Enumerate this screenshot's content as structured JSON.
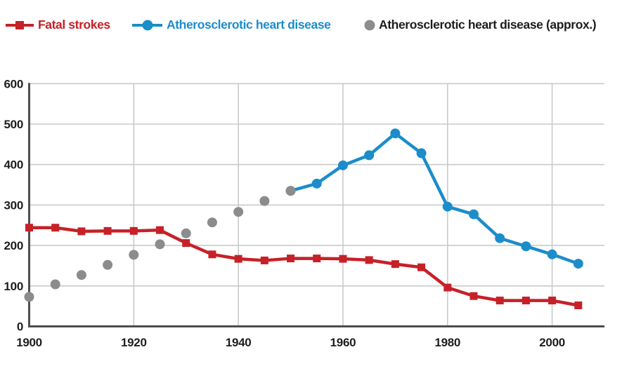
{
  "colors": {
    "strokes_red": "#c62128",
    "heart_blue": "#1b8dca",
    "approx_gray": "#8b8c8e",
    "axis": "#4d4e50",
    "grid": "#c9cacb",
    "text": "#1e1e1e",
    "background": "#ffffff"
  },
  "legend": [
    {
      "label": "Fatal strokes",
      "color": "#c62128",
      "text_color": "#c62128",
      "marker": "square",
      "line": true
    },
    {
      "label": "Atherosclerotic heart disease",
      "color": "#1b8dca",
      "text_color": "#1b8dca",
      "marker": "circle",
      "line": true
    },
    {
      "label": "Atherosclerotic heart disease (approx.)",
      "color": "#8b8c8e",
      "text_color": "#1e1e1e",
      "marker": "circle",
      "line": false
    }
  ],
  "chart_data": {
    "type": "line",
    "title": "",
    "xlabel": "",
    "ylabel": "",
    "xlim": [
      1900,
      2010
    ],
    "ylim": [
      0,
      600
    ],
    "x_ticks": [
      1900,
      1920,
      1940,
      1960,
      1980,
      2000
    ],
    "y_ticks": [
      0,
      100,
      200,
      300,
      400,
      500,
      600
    ],
    "grid": true,
    "legend_position": "top",
    "draw_order": [
      1,
      2,
      0
    ],
    "series": [
      {
        "id": "fatal-strokes",
        "name": "Fatal strokes",
        "color": "#c62128",
        "marker": "square",
        "line": true,
        "x": [
          1900,
          1905,
          1910,
          1915,
          1920,
          1925,
          1930,
          1935,
          1940,
          1945,
          1950,
          1955,
          1960,
          1965,
          1970,
          1975,
          1980,
          1985,
          1990,
          1995,
          2000,
          2005
        ],
        "values": [
          244,
          244,
          235,
          236,
          236,
          238,
          206,
          178,
          167,
          163,
          168,
          168,
          167,
          164,
          154,
          146,
          96,
          75,
          64,
          64,
          64,
          52
        ]
      },
      {
        "id": "heart-disease",
        "name": "Atherosclerotic heart disease",
        "color": "#1b8dca",
        "marker": "circle",
        "line": true,
        "x": [
          1950,
          1955,
          1960,
          1965,
          1970,
          1975,
          1980,
          1985,
          1990,
          1995,
          2000,
          2005
        ],
        "values": [
          335,
          353,
          398,
          423,
          477,
          428,
          296,
          277,
          218,
          198,
          178,
          155
        ]
      },
      {
        "id": "heart-disease-approx",
        "name": "Atherosclerotic heart disease (approx.)",
        "color": "#8b8c8e",
        "marker": "circle",
        "line": false,
        "x": [
          1900,
          1905,
          1910,
          1915,
          1920,
          1925,
          1930,
          1935,
          1940,
          1945,
          1950
        ],
        "values": [
          73,
          104,
          127,
          152,
          177,
          203,
          230,
          257,
          283,
          310,
          335
        ]
      }
    ]
  }
}
